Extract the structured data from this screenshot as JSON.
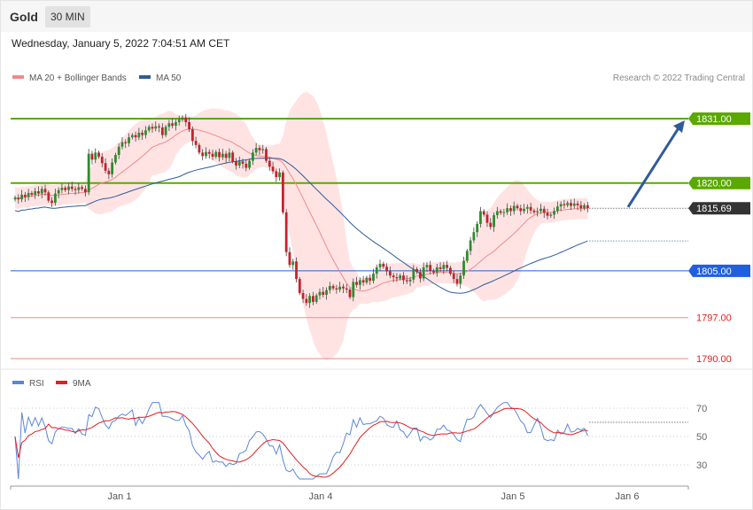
{
  "header": {
    "title": "Gold",
    "timeframe": "30 MIN"
  },
  "datetime": "Wednesday, January 5, 2022 7:04:51 AM CET",
  "legend_main": [
    {
      "label": "MA 20 + Bollinger Bands",
      "color": "#f08a8a"
    },
    {
      "label": "MA 50",
      "color": "#2f5b9a"
    }
  ],
  "legend_rsi": [
    {
      "label": "RSI",
      "color": "#5b86d8"
    },
    {
      "label": "9MA",
      "color": "#e02020"
    }
  ],
  "copyright": "Research © 2022 Trading Central",
  "colors": {
    "resistance": "#5aa800",
    "support": "#1f5fe0",
    "support_low": "#f08a8a",
    "candle_up": "#2f8a2f",
    "candle_down": "#c8202a",
    "band_fill": "#ffd9d9",
    "arrow": "#2f5b9a"
  },
  "chart_data": [
    {
      "type": "candlestick",
      "instrument": "Gold",
      "interval": "30 MIN",
      "ylim": [
        1788,
        1834
      ],
      "x_labels": [
        "Jan 1",
        "Jan 4",
        "Jan 5",
        "Jan 6"
      ],
      "levels": [
        {
          "value": 1831.0,
          "label": "1831.00",
          "kind": "resistance"
        },
        {
          "value": 1820.0,
          "label": "1820.00",
          "kind": "resistance"
        },
        {
          "value": 1815.69,
          "label": "1815.69",
          "kind": "last"
        },
        {
          "value": 1805.0,
          "label": "1805.00",
          "kind": "support"
        },
        {
          "value": 1797.0,
          "label": "1797.00",
          "kind": "support_low"
        },
        {
          "value": 1790.0,
          "label": "1790.00",
          "kind": "support_low"
        }
      ],
      "forecast_target": 1831.0,
      "close": [
        1817.5,
        1817.2,
        1818.0,
        1817.6,
        1818.3,
        1818.0,
        1818.6,
        1818.2,
        1819.0,
        1818.4,
        1817.0,
        1816.6,
        1818.2,
        1818.8,
        1819.2,
        1818.8,
        1819.4,
        1819.0,
        1818.8,
        1819.3,
        1819.0,
        1818.4,
        1825.0,
        1824.0,
        1825.2,
        1824.5,
        1823.4,
        1822.1,
        1821.5,
        1823.5,
        1824.8,
        1826.2,
        1827.0,
        1826.8,
        1827.8,
        1828.2,
        1827.8,
        1828.6,
        1828.2,
        1829.0,
        1829.6,
        1829.3,
        1829.7,
        1829.5,
        1828.2,
        1829.6,
        1830.2,
        1829.8,
        1830.4,
        1830.8,
        1831.2,
        1830.4,
        1829.2,
        1827.2,
        1826.5,
        1825.2,
        1824.6,
        1825.3,
        1825.0,
        1824.5,
        1825.3,
        1824.4,
        1825.0,
        1824.3,
        1825.2,
        1823.7,
        1823.0,
        1823.7,
        1823.3,
        1822.6,
        1823.8,
        1825.2,
        1826.0,
        1825.6,
        1825.8,
        1823.8,
        1822.8,
        1822.0,
        1821.0,
        1821.8,
        1815.0,
        1808.2,
        1806.0,
        1806.6,
        1803.6,
        1801.2,
        1800.2,
        1799.5,
        1800.7,
        1799.7,
        1800.8,
        1801.4,
        1800.9,
        1801.7,
        1802.4,
        1802.0,
        1801.8,
        1802.3,
        1802.0,
        1801.8,
        1800.5,
        1803.1,
        1802.6,
        1803.4,
        1803.0,
        1803.8,
        1803.3,
        1804.5,
        1805.6,
        1806.2,
        1805.7,
        1804.9,
        1804.2,
        1803.9,
        1803.7,
        1804.2,
        1803.4,
        1803.2,
        1803.5,
        1805.3,
        1804.8,
        1803.7,
        1805.6,
        1806.0,
        1805.0,
        1804.7,
        1805.6,
        1805.3,
        1806.0,
        1805.5,
        1804.5,
        1803.6,
        1802.8,
        1804.2,
        1806.7,
        1808.4,
        1810.2,
        1811.6,
        1813.0,
        1815.2,
        1814.6,
        1813.2,
        1812.5,
        1814.5,
        1815.2,
        1814.9,
        1815.0,
        1815.7,
        1815.2,
        1816.1,
        1815.7,
        1815.2,
        1815.6,
        1815.9,
        1815.3,
        1815.0,
        1815.2,
        1815.6,
        1814.9,
        1814.4,
        1814.6,
        1815.2,
        1816.0,
        1816.4,
        1816.2,
        1816.6,
        1816.1,
        1816.5,
        1816.2,
        1815.7,
        1816.2,
        1815.69
      ],
      "rsi": {
        "ticks": [
          70,
          50,
          30
        ],
        "ylim": [
          18,
          76
        ],
        "last": 60
      }
    }
  ]
}
